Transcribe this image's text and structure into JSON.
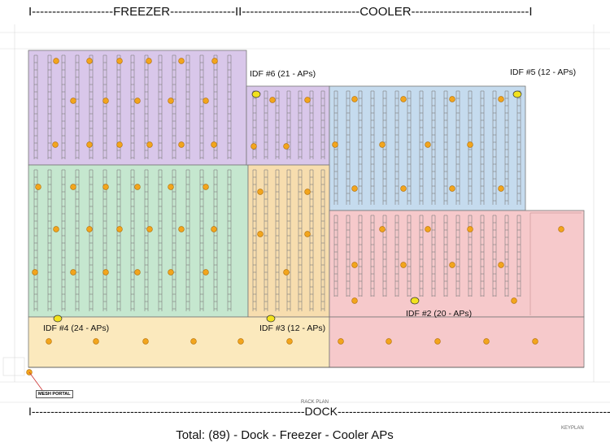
{
  "header": {
    "freezer_line": "I--------------------FREEZER----------------II-----------------------------COOLER-----------------------------I"
  },
  "zones": [
    {
      "id": "freezer-top",
      "color": "#d9c7ea"
    },
    {
      "id": "freezer-bottom",
      "color": "#c5e7cf"
    },
    {
      "id": "cooler-top",
      "color": "#c5dbee"
    },
    {
      "id": "mid",
      "color": "#f7ddae"
    },
    {
      "id": "cooler-bottom",
      "color": "#f6c9cb"
    },
    {
      "id": "dock",
      "color": "#fbe9bd"
    }
  ],
  "idf_labels": [
    {
      "id": "idf6",
      "text": "IDF #6  (21 - APs)"
    },
    {
      "id": "idf5",
      "text": "IDF #5  (12 - APs)"
    },
    {
      "id": "idf4",
      "text": "IDF #4  (24 - APs)"
    },
    {
      "id": "idf3",
      "text": "IDF #3  (12 - APs)"
    },
    {
      "id": "idf2",
      "text": "IDF #2  (20 - APs)"
    }
  ],
  "mesh_portal": "MESH PORTAL",
  "dock_line": "I------------------------------------------------------------------------DOCK------------------------------------------------------------------------------I",
  "plan_notes": {
    "rack_plan": "RACK PLAN",
    "keyplan": "KEYPLAN"
  },
  "total_text": "Total: (89) - Dock - Freezer - Cooler APs",
  "ap_color": "#f2a51d"
}
